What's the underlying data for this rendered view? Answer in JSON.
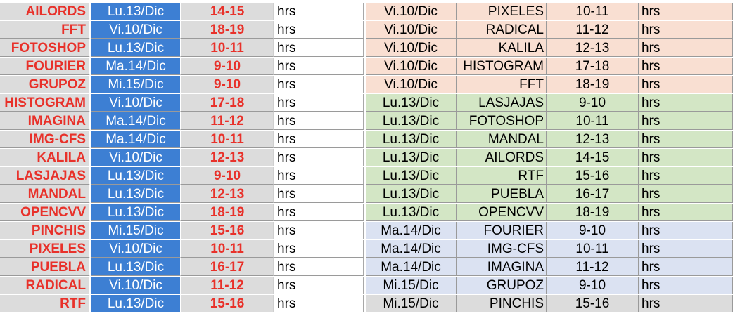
{
  "unit_label": "hrs",
  "colors": {
    "name_text": "#e8312a",
    "date_cell": "#3d7fd3",
    "grey_cell": "#dcdcdc",
    "group_peach": "#f9dfd2",
    "group_green": "#d3e6c5",
    "group_blue": "#dbe2f2"
  },
  "left_table": [
    {
      "name": "AILORDS",
      "date": "Lu.13/Dic",
      "hours": "14-15"
    },
    {
      "name": "FFT",
      "date": "Vi.10/Dic",
      "hours": "18-19"
    },
    {
      "name": "FOTOSHOP",
      "date": "Lu.13/Dic",
      "hours": "10-11"
    },
    {
      "name": "FOURIER",
      "date": "Ma.14/Dic",
      "hours": "9-10"
    },
    {
      "name": "GRUPOZ",
      "date": "Mi.15/Dic",
      "hours": "9-10"
    },
    {
      "name": "HISTOGRAM",
      "date": "Vi.10/Dic",
      "hours": "17-18"
    },
    {
      "name": "IMAGINA",
      "date": "Ma.14/Dic",
      "hours": "11-12"
    },
    {
      "name": "IMG-CFS",
      "date": "Ma.14/Dic",
      "hours": "10-11"
    },
    {
      "name": "KALILA",
      "date": "Vi.10/Dic",
      "hours": "12-13"
    },
    {
      "name": "LASJAJAS",
      "date": "Lu.13/Dic",
      "hours": "9-10"
    },
    {
      "name": "MANDAL",
      "date": "Lu.13/Dic",
      "hours": "12-13"
    },
    {
      "name": "OPENCVV",
      "date": "Lu.13/Dic",
      "hours": "18-19"
    },
    {
      "name": "PINCHIS",
      "date": "Mi.15/Dic",
      "hours": "15-16"
    },
    {
      "name": "PIXELES",
      "date": "Vi.10/Dic",
      "hours": "10-11"
    },
    {
      "name": "PUEBLA",
      "date": "Lu.13/Dic",
      "hours": "16-17"
    },
    {
      "name": "RADICAL",
      "date": "Vi.10/Dic",
      "hours": "11-12"
    },
    {
      "name": "RTF",
      "date": "Lu.13/Dic",
      "hours": "15-16"
    }
  ],
  "right_table": [
    {
      "date": "Vi.10/Dic",
      "name": "PIXELES",
      "hours": "10-11",
      "group": "peach"
    },
    {
      "date": "Vi.10/Dic",
      "name": "RADICAL",
      "hours": "11-12",
      "group": "peach"
    },
    {
      "date": "Vi.10/Dic",
      "name": "KALILA",
      "hours": "12-13",
      "group": "peach"
    },
    {
      "date": "Vi.10/Dic",
      "name": "HISTOGRAM",
      "hours": "17-18",
      "group": "peach"
    },
    {
      "date": "Vi.10/Dic",
      "name": "FFT",
      "hours": "18-19",
      "group": "peach"
    },
    {
      "date": "Lu.13/Dic",
      "name": "LASJAJAS",
      "hours": "9-10",
      "group": "green"
    },
    {
      "date": "Lu.13/Dic",
      "name": "FOTOSHOP",
      "hours": "10-11",
      "group": "green"
    },
    {
      "date": "Lu.13/Dic",
      "name": "MANDAL",
      "hours": "12-13",
      "group": "green"
    },
    {
      "date": "Lu.13/Dic",
      "name": "AILORDS",
      "hours": "14-15",
      "group": "green"
    },
    {
      "date": "Lu.13/Dic",
      "name": "RTF",
      "hours": "15-16",
      "group": "green"
    },
    {
      "date": "Lu.13/Dic",
      "name": "PUEBLA",
      "hours": "16-17",
      "group": "green"
    },
    {
      "date": "Lu.13/Dic",
      "name": "OPENCVV",
      "hours": "18-19",
      "group": "green"
    },
    {
      "date": "Ma.14/Dic",
      "name": "FOURIER",
      "hours": "9-10",
      "group": "blue"
    },
    {
      "date": "Ma.14/Dic",
      "name": "IMG-CFS",
      "hours": "10-11",
      "group": "blue"
    },
    {
      "date": "Ma.14/Dic",
      "name": "IMAGINA",
      "hours": "11-12",
      "group": "blue"
    },
    {
      "date": "Mi.15/Dic",
      "name": "GRUPOZ",
      "hours": "9-10",
      "group": "blue"
    },
    {
      "date": "Mi.15/Dic",
      "name": "PINCHIS",
      "hours": "15-16",
      "group": "grey"
    }
  ]
}
